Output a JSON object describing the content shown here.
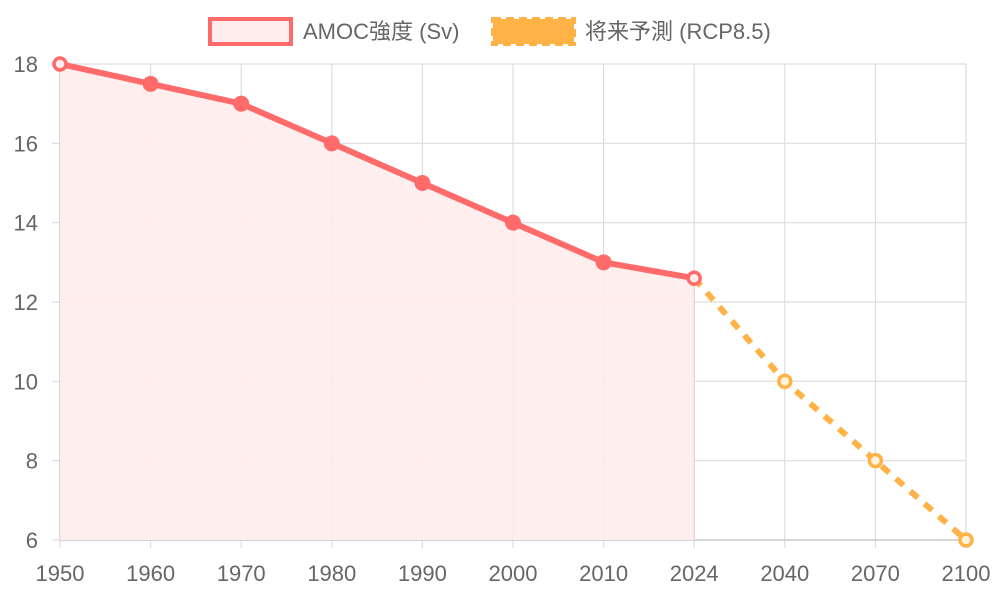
{
  "chart_data": {
    "type": "line",
    "categories": [
      "1950",
      "1960",
      "1970",
      "1980",
      "1990",
      "2000",
      "2010",
      "2024",
      "2040",
      "2070",
      "2100"
    ],
    "series": [
      {
        "name": "AMOC強度 (Sv)",
        "color": "#ff6b6b",
        "fill": "#ffecec",
        "style": "solid",
        "area": true,
        "values": [
          18,
          17.5,
          17,
          16,
          15,
          14,
          13,
          12.6,
          null,
          null,
          null
        ]
      },
      {
        "name": "将来予測 (RCP8.5)",
        "color": "#ffb347",
        "style": "dashed",
        "area": false,
        "values": [
          null,
          null,
          null,
          null,
          null,
          null,
          null,
          12.6,
          10,
          8,
          6
        ]
      }
    ],
    "y_ticks": [
      "6",
      "8",
      "10",
      "12",
      "14",
      "16",
      "18"
    ],
    "ylim": [
      6,
      18
    ],
    "grid": true,
    "legend_position": "top"
  }
}
